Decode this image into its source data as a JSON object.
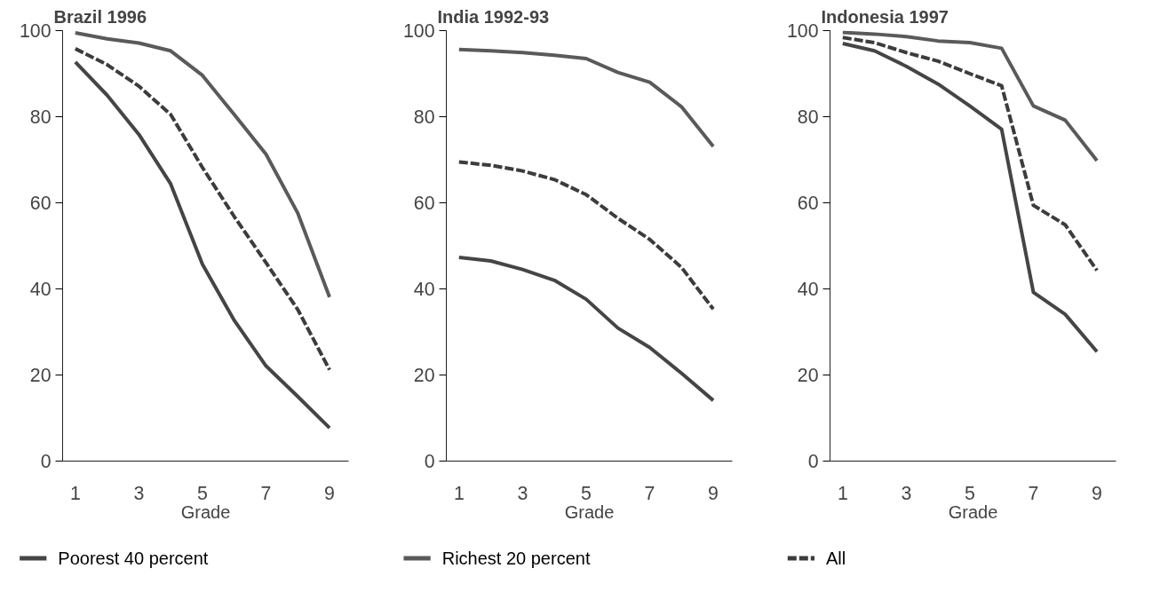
{
  "chart_data": [
    {
      "type": "line",
      "title": "Brazil 1996",
      "xlabel": "Grade",
      "x": [
        1,
        2,
        3,
        4,
        5,
        6,
        7,
        8,
        9
      ],
      "xlim": [
        0.6,
        9.6
      ],
      "xticks": [
        1,
        3,
        5,
        7,
        9
      ],
      "ylim": [
        0,
        100
      ],
      "yticks": [
        0,
        20,
        40,
        60,
        80,
        100
      ],
      "grid": false,
      "legend": "bottom",
      "marker": "none",
      "series": [
        {
          "name": "Poorest 40 percent",
          "color": "#454545",
          "line_style": "solid",
          "values": [
            92.7,
            85,
            75.9,
            64.4,
            45.7,
            32.7,
            22.1,
            15,
            7.7
          ]
        },
        {
          "name": "Richest 20 percent",
          "color": "#5a5a5a",
          "line_style": "solid",
          "values": [
            99.5,
            98.1,
            97.1,
            95.3,
            89.6,
            80.5,
            71.3,
            57.6,
            38.1
          ]
        },
        {
          "name": "All",
          "color": "#3c3c3c",
          "line_style": "dashed",
          "values": [
            95.8,
            92.1,
            87.1,
            80.5,
            68.2,
            56.8,
            46.1,
            35.2,
            21.2
          ]
        }
      ]
    },
    {
      "type": "line",
      "title": "India 1992-93",
      "xlabel": "Grade",
      "x": [
        1,
        2,
        3,
        4,
        5,
        6,
        7,
        8,
        9
      ],
      "xlim": [
        0.6,
        9.6
      ],
      "xticks": [
        1,
        3,
        5,
        7,
        9
      ],
      "ylim": [
        0,
        100
      ],
      "yticks": [
        0,
        20,
        40,
        60,
        80,
        100
      ],
      "grid": false,
      "marker": "none",
      "series": [
        {
          "color": "#454545",
          "line_style": "solid",
          "values": [
            47.3,
            46.5,
            44.5,
            42,
            37.6,
            30.9,
            26.4,
            20.4,
            14.1
          ]
        },
        {
          "color": "#5a5a5a",
          "line_style": "solid",
          "values": [
            95.6,
            95.3,
            94.9,
            94.3,
            93.5,
            90.3,
            88,
            82.3,
            73.1
          ]
        },
        {
          "color": "#3c3c3c",
          "line_style": "dashed",
          "values": [
            69.5,
            68.7,
            67.4,
            65.4,
            61.9,
            56.4,
            51.5,
            45,
            35.3
          ]
        }
      ]
    },
    {
      "type": "line",
      "title": "Indonesia 1997",
      "xlabel": "Grade",
      "x": [
        1,
        2,
        3,
        4,
        5,
        6,
        7,
        8,
        9
      ],
      "xlim": [
        0.6,
        9.6
      ],
      "xticks": [
        1,
        3,
        5,
        7,
        9
      ],
      "ylim": [
        0,
        100
      ],
      "yticks": [
        0,
        20,
        40,
        60,
        80,
        100
      ],
      "grid": false,
      "marker": "none",
      "series": [
        {
          "color": "#454545",
          "line_style": "solid",
          "values": [
            97,
            95.3,
            91.7,
            87.6,
            82.5,
            77.1,
            39.2,
            34.1,
            25.4
          ]
        },
        {
          "color": "#5a5a5a",
          "line_style": "solid",
          "values": [
            99.6,
            99.2,
            98.6,
            97.6,
            97.2,
            95.9,
            82.5,
            79.2,
            69.8
          ]
        },
        {
          "color": "#3c3c3c",
          "line_style": "dashed",
          "values": [
            98.4,
            97.2,
            94.9,
            92.9,
            90,
            87.2,
            59.4,
            54.9,
            44.3
          ]
        }
      ]
    }
  ]
}
